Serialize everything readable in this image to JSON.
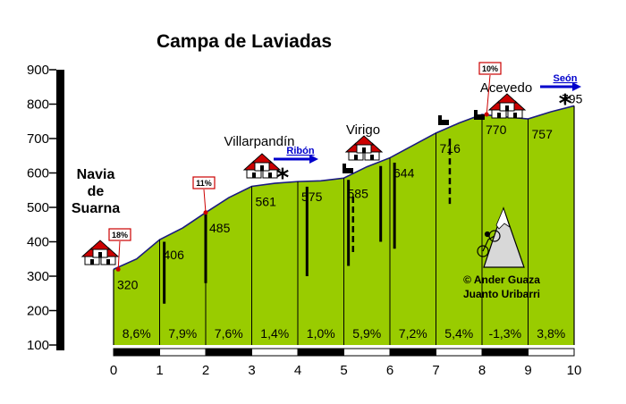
{
  "chart_data": {
    "type": "area",
    "title": "Campa de Laviadas",
    "ylim": [
      100,
      900
    ],
    "yticks": [
      100,
      200,
      300,
      400,
      500,
      600,
      700,
      800,
      900
    ],
    "xlim": [
      0,
      10
    ],
    "xticks": [
      0,
      1,
      2,
      3,
      4,
      5,
      6,
      7,
      8,
      9,
      10
    ],
    "xtick_labels": [
      "0",
      "1",
      "2",
      "3",
      "4",
      "5",
      "6",
      "7",
      "8",
      "9",
      "10"
    ],
    "profile": [
      {
        "x": 0,
        "y": 320
      },
      {
        "x": 0.5,
        "y": 350
      },
      {
        "x": 1,
        "y": 406
      },
      {
        "x": 1.5,
        "y": 440
      },
      {
        "x": 2,
        "y": 485
      },
      {
        "x": 2.5,
        "y": 528
      },
      {
        "x": 3,
        "y": 561
      },
      {
        "x": 3.5,
        "y": 570
      },
      {
        "x": 4,
        "y": 575
      },
      {
        "x": 4.5,
        "y": 577
      },
      {
        "x": 5,
        "y": 585
      },
      {
        "x": 5.5,
        "y": 618
      },
      {
        "x": 6,
        "y": 644
      },
      {
        "x": 6.5,
        "y": 680
      },
      {
        "x": 7,
        "y": 716
      },
      {
        "x": 7.5,
        "y": 745
      },
      {
        "x": 8,
        "y": 770
      },
      {
        "x": 8.5,
        "y": 763
      },
      {
        "x": 9,
        "y": 757
      },
      {
        "x": 9.5,
        "y": 778
      },
      {
        "x": 10,
        "y": 795
      }
    ],
    "elevation_labels": [
      {
        "x": 0,
        "text": "320"
      },
      {
        "x": 1,
        "text": "406"
      },
      {
        "x": 2,
        "text": "485"
      },
      {
        "x": 3,
        "text": "561"
      },
      {
        "x": 4,
        "text": "575"
      },
      {
        "x": 5,
        "text": "585"
      },
      {
        "x": 6,
        "text": "644"
      },
      {
        "x": 7,
        "text": "716"
      },
      {
        "x": 8,
        "text": "770"
      },
      {
        "x": 9,
        "text": "757"
      },
      {
        "x": 10,
        "text": "795"
      }
    ],
    "segment_grades": [
      "8,6%",
      "7,9%",
      "7,6%",
      "1,4%",
      "1,0%",
      "5,9%",
      "7,2%",
      "5,4%",
      "-1,3%",
      "3,8%"
    ],
    "max_grade_badges": [
      {
        "x": 0.1,
        "y": 320,
        "text": "18%"
      },
      {
        "x": 2.0,
        "y": 485,
        "text": "11%"
      },
      {
        "x": 8.1,
        "y": 770,
        "text": "10%"
      }
    ],
    "places": [
      {
        "x": 0,
        "y": 320,
        "text": "Navia\nde\nSuarna"
      },
      {
        "x": 3.3,
        "y": 561,
        "text": "Villarpandín"
      },
      {
        "x": 5.4,
        "y": 600,
        "text": "Virigo"
      },
      {
        "x": 8.6,
        "y": 770,
        "text": "Acevedo"
      }
    ],
    "connections": [
      {
        "x": 3.6,
        "text": "Ribón"
      },
      {
        "x": 9.6,
        "text": "Seón"
      }
    ],
    "credit": [
      "© Ander Guaza",
      "Juanto Uribarri"
    ],
    "colors": {
      "fill": "#99cc00",
      "outline": "#1a1a80",
      "axis": "#000000",
      "badge": "#cc0000"
    }
  }
}
